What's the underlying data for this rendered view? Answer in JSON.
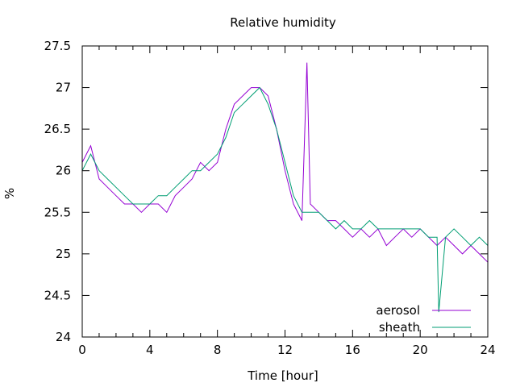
{
  "chart_data": {
    "type": "line",
    "title": "Relative humidity",
    "xlabel": "Time [hour]",
    "ylabel": "%",
    "xlim": [
      0,
      24
    ],
    "ylim": [
      24,
      27.5
    ],
    "x_ticks": [
      0,
      4,
      8,
      12,
      16,
      20,
      24
    ],
    "y_ticks": [
      24,
      24.5,
      25,
      25.5,
      26,
      26.5,
      27,
      27.5
    ],
    "grid": false,
    "legend_position": "bottom-right",
    "series": [
      {
        "name": "aerosol",
        "color": "#9400d3",
        "x": [
          0,
          0.5,
          1,
          1.5,
          2,
          2.5,
          3,
          3.5,
          4,
          4.5,
          5,
          5.5,
          6,
          6.5,
          7,
          7.5,
          8,
          8.5,
          9,
          9.5,
          10,
          10.5,
          11,
          11.5,
          12,
          12.5,
          13,
          13.3,
          13.5,
          14,
          14.5,
          15,
          15.5,
          16,
          16.5,
          17,
          17.5,
          18,
          18.5,
          19,
          19.5,
          20,
          20.5,
          21,
          21.5,
          22,
          22.5,
          23,
          23.5,
          24
        ],
        "y": [
          26.1,
          26.3,
          25.9,
          25.8,
          25.7,
          25.6,
          25.6,
          25.5,
          25.6,
          25.6,
          25.5,
          25.7,
          25.8,
          25.9,
          26.1,
          26.0,
          26.1,
          26.5,
          26.8,
          26.9,
          27.0,
          27.0,
          26.9,
          26.5,
          26.0,
          25.6,
          25.4,
          27.3,
          25.6,
          25.5,
          25.4,
          25.4,
          25.3,
          25.2,
          25.3,
          25.2,
          25.3,
          25.1,
          25.2,
          25.3,
          25.2,
          25.3,
          25.2,
          25.1,
          25.2,
          25.1,
          25.0,
          25.1,
          25.0,
          24.9
        ]
      },
      {
        "name": "sheath",
        "color": "#009e73",
        "x": [
          0,
          0.5,
          1,
          1.5,
          2,
          2.5,
          3,
          3.5,
          4,
          4.5,
          5,
          5.5,
          6,
          6.5,
          7,
          7.5,
          8,
          8.5,
          9,
          9.5,
          10,
          10.5,
          11,
          11.5,
          12,
          12.5,
          13,
          13.5,
          14,
          14.5,
          15,
          15.5,
          16,
          16.5,
          17,
          17.5,
          18,
          18.5,
          19,
          19.5,
          20,
          20.5,
          21,
          21.1,
          21.5,
          22,
          22.5,
          23,
          23.5,
          24
        ],
        "y": [
          26.0,
          26.2,
          26.0,
          25.9,
          25.8,
          25.7,
          25.6,
          25.6,
          25.6,
          25.7,
          25.7,
          25.8,
          25.9,
          26.0,
          26.0,
          26.1,
          26.2,
          26.4,
          26.7,
          26.8,
          26.9,
          27.0,
          26.8,
          26.5,
          26.1,
          25.7,
          25.5,
          25.5,
          25.5,
          25.4,
          25.3,
          25.4,
          25.3,
          25.3,
          25.4,
          25.3,
          25.3,
          25.3,
          25.3,
          25.3,
          25.3,
          25.2,
          25.2,
          24.3,
          25.2,
          25.3,
          25.2,
          25.1,
          25.2,
          25.1
        ]
      }
    ]
  }
}
